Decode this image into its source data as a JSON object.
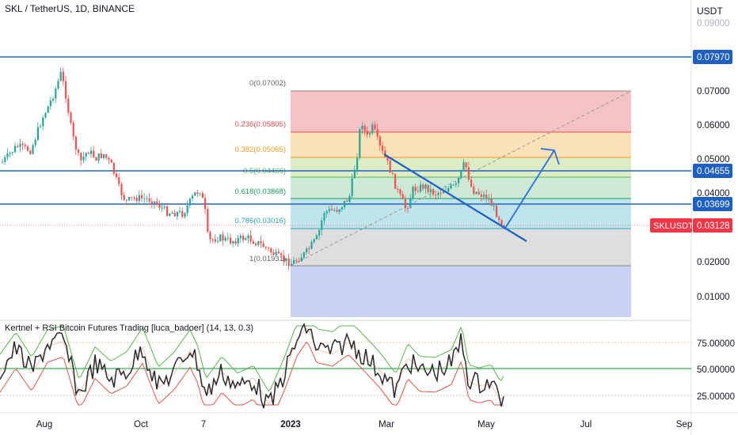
{
  "header": {
    "symbol_line": "SKL / TetherUS, 1D, BINANCE",
    "currency": "USDT"
  },
  "colors": {
    "level_line": "#1e63c8",
    "price_badge": "#1e5fc4",
    "last_price_badge": "#f23645",
    "fib_0": "#888888",
    "fib_236": "#e84b4b",
    "fib_382": "#f39a1f",
    "fib_5": "#53b45d",
    "fib_618": "#1d9e55",
    "fib_786": "#2aa6b5",
    "fib_1": "#888888",
    "arrow": "#2a6fe0",
    "trendline": "#1f5fc7"
  },
  "price_axis": {
    "ticks": [
      "0.09000",
      "0.07000",
      "0.06000",
      "0.05000",
      "0.04000",
      "0.02000",
      "0.01000"
    ],
    "levels": [
      "0.07970",
      "0.04655",
      "0.03699"
    ],
    "last_symbol": "SKLUSDT",
    "last_price": "0.03128"
  },
  "fib_labels": [
    "0(0.07002)",
    "0.236(0.05805)",
    "0.382(0.05065)",
    "0.5(0.04466)",
    "0.618(0.03868)",
    "0.786(0.03016)",
    "1(0.01931)"
  ],
  "indicator": {
    "title": "Kertnel + RSI Bitcoin Futures Trading [luca_badoer] (14, 13, 0.3)",
    "ticks": [
      "75.00000",
      "50.00000",
      "25.00000"
    ]
  },
  "time_axis": {
    "labels": [
      "Aug",
      "Oct",
      "7",
      "2023",
      "Mar",
      "May",
      "Jul",
      "Sep"
    ]
  }
}
